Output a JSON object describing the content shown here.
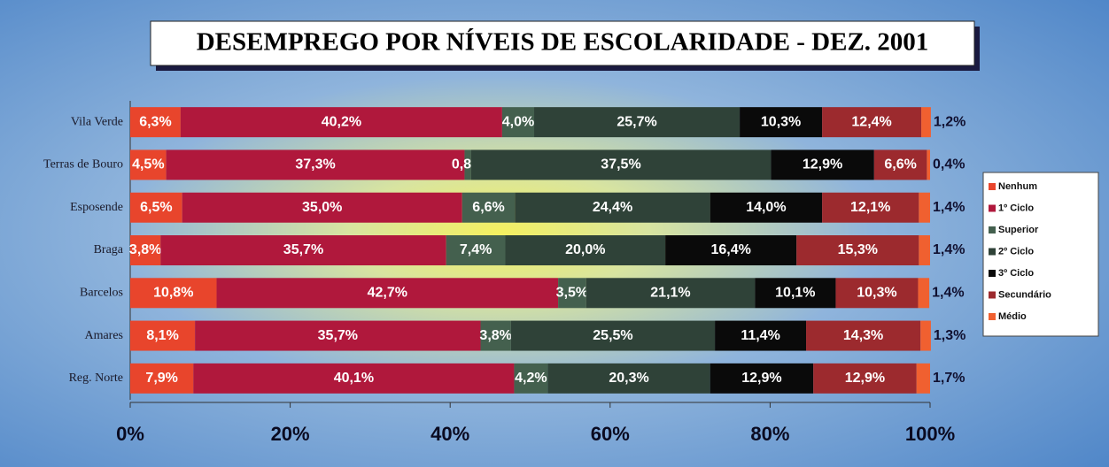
{
  "chart_data": {
    "type": "stacked-bar-horizontal",
    "title": "DESEMPREGO POR NÍVEIS DE ESCOLARIDADE - DEZ. 2001",
    "categories": [
      "Vila Verde",
      "Terras de Bouro",
      "Esposende",
      "Braga",
      "Barcelos",
      "Amares",
      "Reg. Norte"
    ],
    "series": [
      {
        "name": "Nenhum",
        "color": "#e8452c",
        "values": [
          6.3,
          4.5,
          6.5,
          3.8,
          10.8,
          8.1,
          7.9
        ],
        "value_labels": [
          "6,3%",
          "4,5%",
          "6,5%",
          "3,8%",
          "10,8%",
          "8,1%",
          "7,9%"
        ]
      },
      {
        "name": "1º Ciclo",
        "color": "#b0183c",
        "values": [
          40.2,
          37.3,
          35.0,
          35.7,
          42.7,
          35.7,
          40.1
        ],
        "value_labels": [
          "40,2%",
          "37,3%",
          "35,0%",
          "35,7%",
          "42,7%",
          "35,7%",
          "40,1%"
        ]
      },
      {
        "name": "Superior",
        "color": "#44604e",
        "values": [
          4.0,
          0.8,
          6.6,
          7.4,
          3.5,
          3.8,
          4.2
        ],
        "value_labels": [
          "4,0%",
          "0,8%",
          "6,6%",
          "7,4%",
          "3,5%",
          "3,8%",
          "4,2%"
        ]
      },
      {
        "name": "2º Ciclo",
        "color": "#2f4238",
        "values": [
          25.7,
          37.5,
          24.4,
          20.0,
          21.1,
          25.5,
          20.3
        ],
        "value_labels": [
          "25,7%",
          "37,5%",
          "24,4%",
          "20,0%",
          "21,1%",
          "25,5%",
          "20,3%"
        ]
      },
      {
        "name": "3º Ciclo",
        "color": "#0a0a0a",
        "values": [
          10.3,
          12.9,
          14.0,
          16.4,
          10.1,
          11.4,
          12.9
        ],
        "value_labels": [
          "10,3%",
          "12,9%",
          "14,0%",
          "16,4%",
          "10,1%",
          "11,4%",
          "12,9%"
        ]
      },
      {
        "name": "Secundário",
        "color": "#9c2a2e",
        "values": [
          12.4,
          6.6,
          12.1,
          15.3,
          10.3,
          14.3,
          12.9
        ],
        "value_labels": [
          "12,4%",
          "6,6%",
          "12,1%",
          "15,3%",
          "10,3%",
          "14,3%",
          "12,9%"
        ]
      },
      {
        "name": "Médio",
        "color": "#f06030",
        "values": [
          1.2,
          0.4,
          1.4,
          1.4,
          1.4,
          1.3,
          1.7
        ],
        "value_labels": [
          "1,2%",
          "0,4%",
          "1,4%",
          "1,4%",
          "1,4%",
          "1,3%",
          "1,7%"
        ]
      }
    ],
    "xlim": [
      0,
      100
    ],
    "xticks": [
      {
        "value": 0,
        "label": "0%"
      },
      {
        "value": 20,
        "label": "20%"
      },
      {
        "value": 40,
        "label": "40%"
      },
      {
        "value": 60,
        "label": "60%"
      },
      {
        "value": 80,
        "label": "80%"
      },
      {
        "value": 100,
        "label": "100%"
      }
    ]
  }
}
